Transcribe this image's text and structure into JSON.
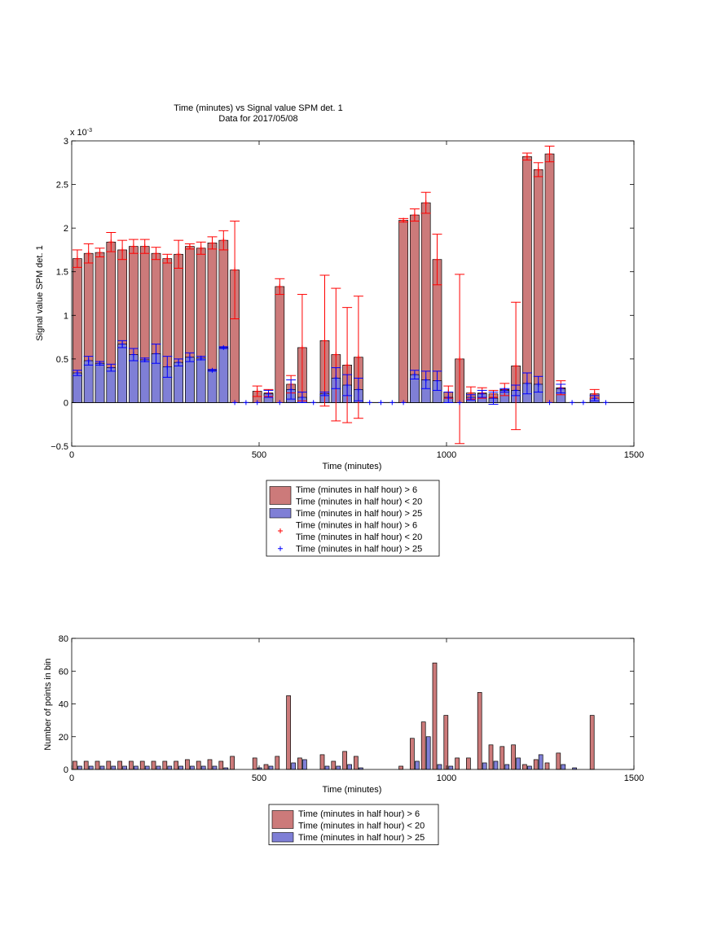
{
  "chart_data": [
    {
      "type": "bar",
      "title": "Time (minutes) vs Signal value SPM det. 1",
      "subtitle": "Data for 2017/05/08",
      "xlabel": "Time (minutes)",
      "ylabel": "Signal value SPM det. 1",
      "y_exponent_label": "x 10",
      "y_exponent_power": "-3",
      "xlim": [
        0,
        1500
      ],
      "ylim": [
        -0.5,
        3
      ],
      "xticks": [
        0,
        500,
        1000,
        1500
      ],
      "yticks": [
        -0.5,
        0,
        0.5,
        1,
        1.5,
        2,
        2.5,
        3
      ],
      "ytick_labels": [
        "−0.5",
        "0",
        "0.5",
        "1",
        "1.5",
        "2",
        "2.5",
        "3"
      ],
      "grid": false,
      "legend_position": "below",
      "legend": [
        {
          "kind": "bar",
          "lines": [
            "Time (minutes in half hour) > 6",
            "Time (minutes in half hour) < 20"
          ],
          "color": "#cc7a7a"
        },
        {
          "kind": "bar",
          "lines": [
            "Time (minutes in half hour) > 25"
          ],
          "color": "#7f7fd6"
        },
        {
          "kind": "marker",
          "lines": [
            "Time (minutes in half hour) > 6",
            "Time (minutes in half hour) < 20"
          ],
          "color": "#ff0000"
        },
        {
          "kind": "marker",
          "lines": [
            "Time (minutes in half hour) > 25"
          ],
          "color": "#0000ff"
        }
      ],
      "colors": {
        "series1": "#cc7a7a",
        "series2": "#7f7fd6",
        "err1": "#ff0000",
        "err2": "#0000ff"
      },
      "series": [
        {
          "x": [
            15,
            45,
            75,
            105,
            135,
            165,
            195,
            225,
            255,
            285,
            315,
            345,
            375,
            405,
            435,
            495,
            525,
            555,
            585,
            615,
            675,
            705,
            735,
            765,
            885,
            915,
            945,
            975,
            1005,
            1035,
            1065,
            1095,
            1125,
            1155,
            1185,
            1215,
            1245,
            1275,
            1305,
            1395
          ],
          "values": [
            1.65,
            1.71,
            1.72,
            1.84,
            1.75,
            1.79,
            1.79,
            1.71,
            1.65,
            1.7,
            1.79,
            1.77,
            1.83,
            1.86,
            1.52,
            0.13,
            0.11,
            1.33,
            0.21,
            0.63,
            0.71,
            0.55,
            0.43,
            0.52,
            2.09,
            2.15,
            2.29,
            1.64,
            0.12,
            0.5,
            0.11,
            0.11,
            0.1,
            0.15,
            0.42,
            2.82,
            2.67,
            2.85,
            0.17,
            0.1
          ],
          "err": [
            0.1,
            0.11,
            0.05,
            0.11,
            0.11,
            0.08,
            0.08,
            0.07,
            0.05,
            0.16,
            0.03,
            0.07,
            0.07,
            0.11,
            0.56,
            0.06,
            0.04,
            0.09,
            0.1,
            0.61,
            0.75,
            0.76,
            0.66,
            0.7,
            0.02,
            0.07,
            0.12,
            0.29,
            0.07,
            0.97,
            0.07,
            0.06,
            0.04,
            0.07,
            0.73,
            0.04,
            0.08,
            0.09,
            0.08,
            0.05
          ]
        },
        {
          "x": [
            15,
            45,
            75,
            105,
            135,
            165,
            195,
            225,
            255,
            285,
            315,
            345,
            375,
            405,
            435,
            465,
            495,
            525,
            555,
            585,
            615,
            645,
            675,
            705,
            735,
            765,
            795,
            825,
            855,
            885,
            915,
            945,
            975,
            1005,
            1035,
            1065,
            1095,
            1125,
            1155,
            1185,
            1215,
            1245,
            1275,
            1305,
            1335,
            1365,
            1395,
            1425
          ],
          "values": [
            0.34,
            0.48,
            0.45,
            0.4,
            0.67,
            0.55,
            0.49,
            0.56,
            0.41,
            0.46,
            0.52,
            0.51,
            0.37,
            0.63,
            0,
            0,
            0,
            0.1,
            0,
            0.15,
            0.06,
            0,
            0.1,
            0.28,
            0.2,
            0.15,
            0,
            0,
            0,
            0,
            0.32,
            0.26,
            0.25,
            0.06,
            0,
            0.06,
            0.1,
            0.05,
            0.14,
            0.14,
            0.22,
            0.21,
            0,
            0.16,
            0,
            0,
            0.05,
            0
          ],
          "err": [
            0.03,
            0.05,
            0.02,
            0.04,
            0.04,
            0.07,
            0.02,
            0.11,
            0.12,
            0.04,
            0.05,
            0.02,
            0.01,
            0.01,
            0,
            0,
            0,
            0.04,
            0,
            0.11,
            0.06,
            0,
            0.02,
            0.12,
            0.12,
            0.13,
            0,
            0,
            0,
            0,
            0.05,
            0.1,
            0.11,
            0.06,
            0,
            0.03,
            0.04,
            0.07,
            0.02,
            0.06,
            0.12,
            0.09,
            0,
            0.05,
            0,
            0,
            0.03,
            0
          ]
        }
      ]
    },
    {
      "type": "bar",
      "title": "",
      "xlabel": "Time (minutes)",
      "ylabel": "Number of points in bin",
      "xlim": [
        0,
        1500
      ],
      "ylim": [
        0,
        80
      ],
      "xticks": [
        0,
        500,
        1000,
        1500
      ],
      "yticks": [
        0,
        20,
        40,
        60,
        80
      ],
      "grid": false,
      "legend_position": "below",
      "legend": [
        {
          "kind": "bar",
          "lines": [
            "Time (minutes in half hour) > 6",
            "Time (minutes in half hour) < 20"
          ],
          "color": "#cc7a7a"
        },
        {
          "kind": "bar",
          "lines": [
            "Time (minutes in half hour) > 25"
          ],
          "color": "#7f7fd6"
        }
      ],
      "colors": {
        "series1": "#cc7a7a",
        "series2": "#7f7fd6"
      },
      "series": [
        {
          "x": [
            15,
            45,
            75,
            105,
            135,
            165,
            195,
            225,
            255,
            285,
            315,
            345,
            375,
            405,
            435,
            495,
            525,
            555,
            585,
            615,
            675,
            705,
            735,
            765,
            885,
            915,
            945,
            975,
            1005,
            1035,
            1065,
            1095,
            1125,
            1155,
            1185,
            1215,
            1245,
            1275,
            1305,
            1395
          ],
          "values": [
            5,
            5,
            5,
            5,
            5,
            5,
            5,
            5,
            5,
            5,
            6,
            5,
            6,
            5,
            8,
            7,
            3,
            8,
            45,
            7,
            9,
            5,
            11,
            8,
            2,
            19,
            29,
            65,
            33,
            7,
            7,
            47,
            15,
            14,
            15,
            3,
            6,
            4,
            10,
            33
          ]
        },
        {
          "x": [
            15,
            45,
            75,
            105,
            135,
            165,
            195,
            225,
            255,
            285,
            315,
            345,
            375,
            405,
            495,
            525,
            585,
            615,
            675,
            705,
            735,
            765,
            915,
            945,
            975,
            1005,
            1095,
            1125,
            1155,
            1185,
            1215,
            1245,
            1305,
            1335
          ],
          "values": [
            2,
            2,
            2,
            2,
            2,
            2,
            2,
            2,
            2,
            2,
            2,
            2,
            2,
            1,
            1,
            2,
            4,
            6,
            2,
            2,
            3,
            1,
            5,
            20,
            3,
            2,
            4,
            5,
            3,
            7,
            2,
            9,
            3,
            1
          ]
        }
      ]
    }
  ]
}
